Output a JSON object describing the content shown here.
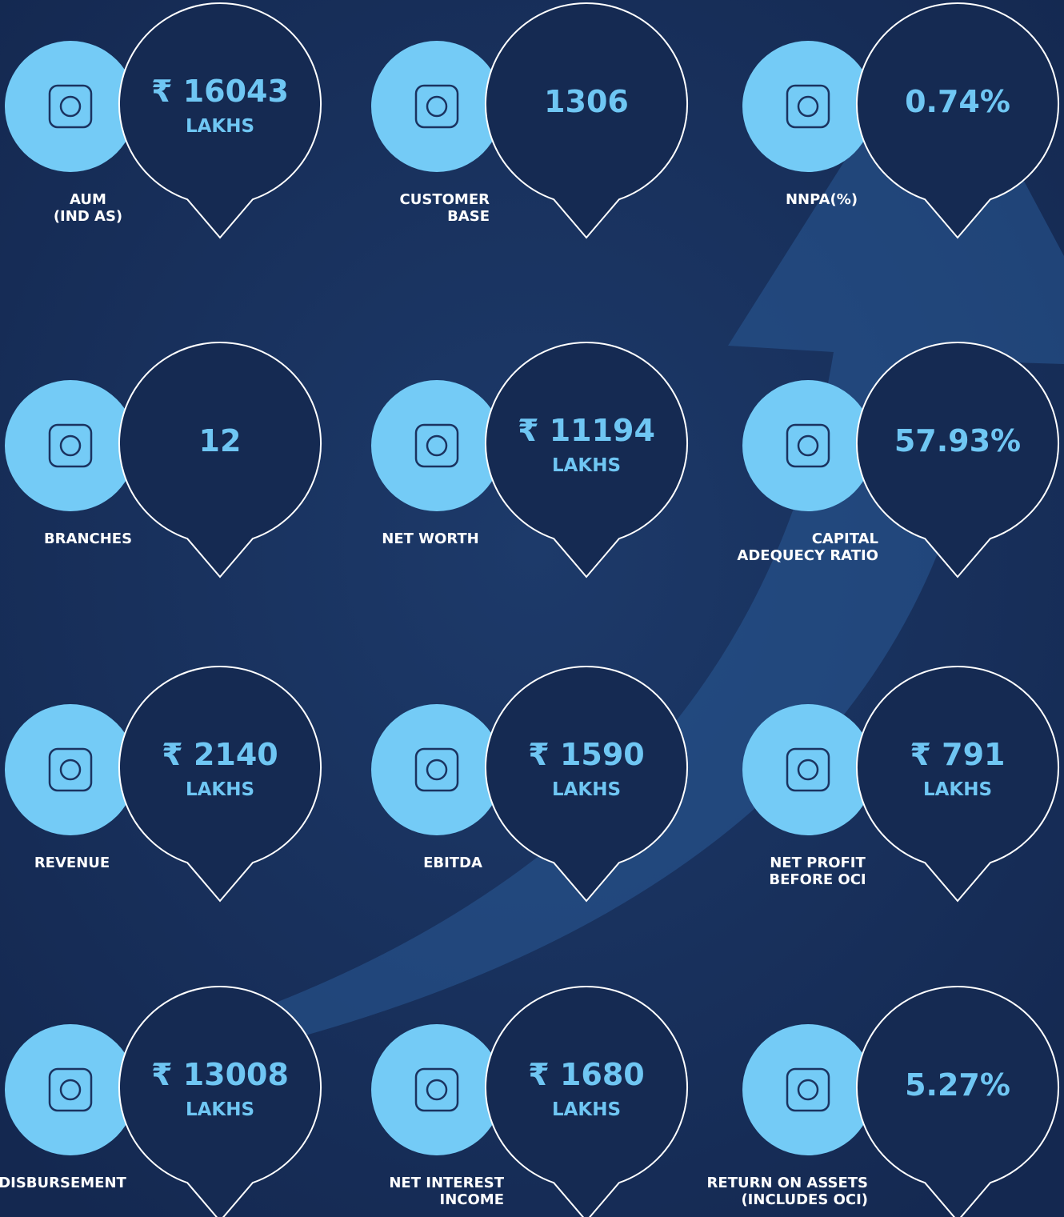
{
  "items": [
    {
      "label": [
        "AUM",
        "(IND AS)"
      ],
      "value": "₹ 16043",
      "unit": "LAKHS"
    },
    {
      "label": [
        "CUSTOMER",
        "BASE"
      ],
      "value": "1306"
    },
    {
      "label": [
        "NNPA(%)"
      ],
      "value": "0.74%"
    },
    {
      "label": [
        "BRANCHES"
      ],
      "value": "12"
    },
    {
      "label": [
        "NET WORTH"
      ],
      "value": "₹ 11194",
      "unit": "LAKHS"
    },
    {
      "label": [
        "CAPITAL",
        "ADEQUECY RATIO"
      ],
      "value": "57.93%"
    },
    {
      "label": [
        "REVENUE"
      ],
      "value": "₹ 2140",
      "unit": "LAKHS"
    },
    {
      "label": [
        "EBITDA"
      ],
      "value": "₹ 1590",
      "unit": "LAKHS"
    },
    {
      "label": [
        "NET PROFIT",
        "BEFORE OCI"
      ],
      "value": "₹ 791",
      "unit": "LAKHS"
    },
    {
      "label": [
        "DISBURSEMENT"
      ],
      "value": "₹ 13008",
      "unit": "LAKHS"
    },
    {
      "label": [
        "NET INTEREST",
        "INCOME"
      ],
      "value": "₹ 1680",
      "unit": "LAKHS"
    },
    {
      "label": [
        "RETURN ON ASSETS",
        "(INCLUDES OCI)"
      ],
      "value": "5.27%"
    }
  ]
}
